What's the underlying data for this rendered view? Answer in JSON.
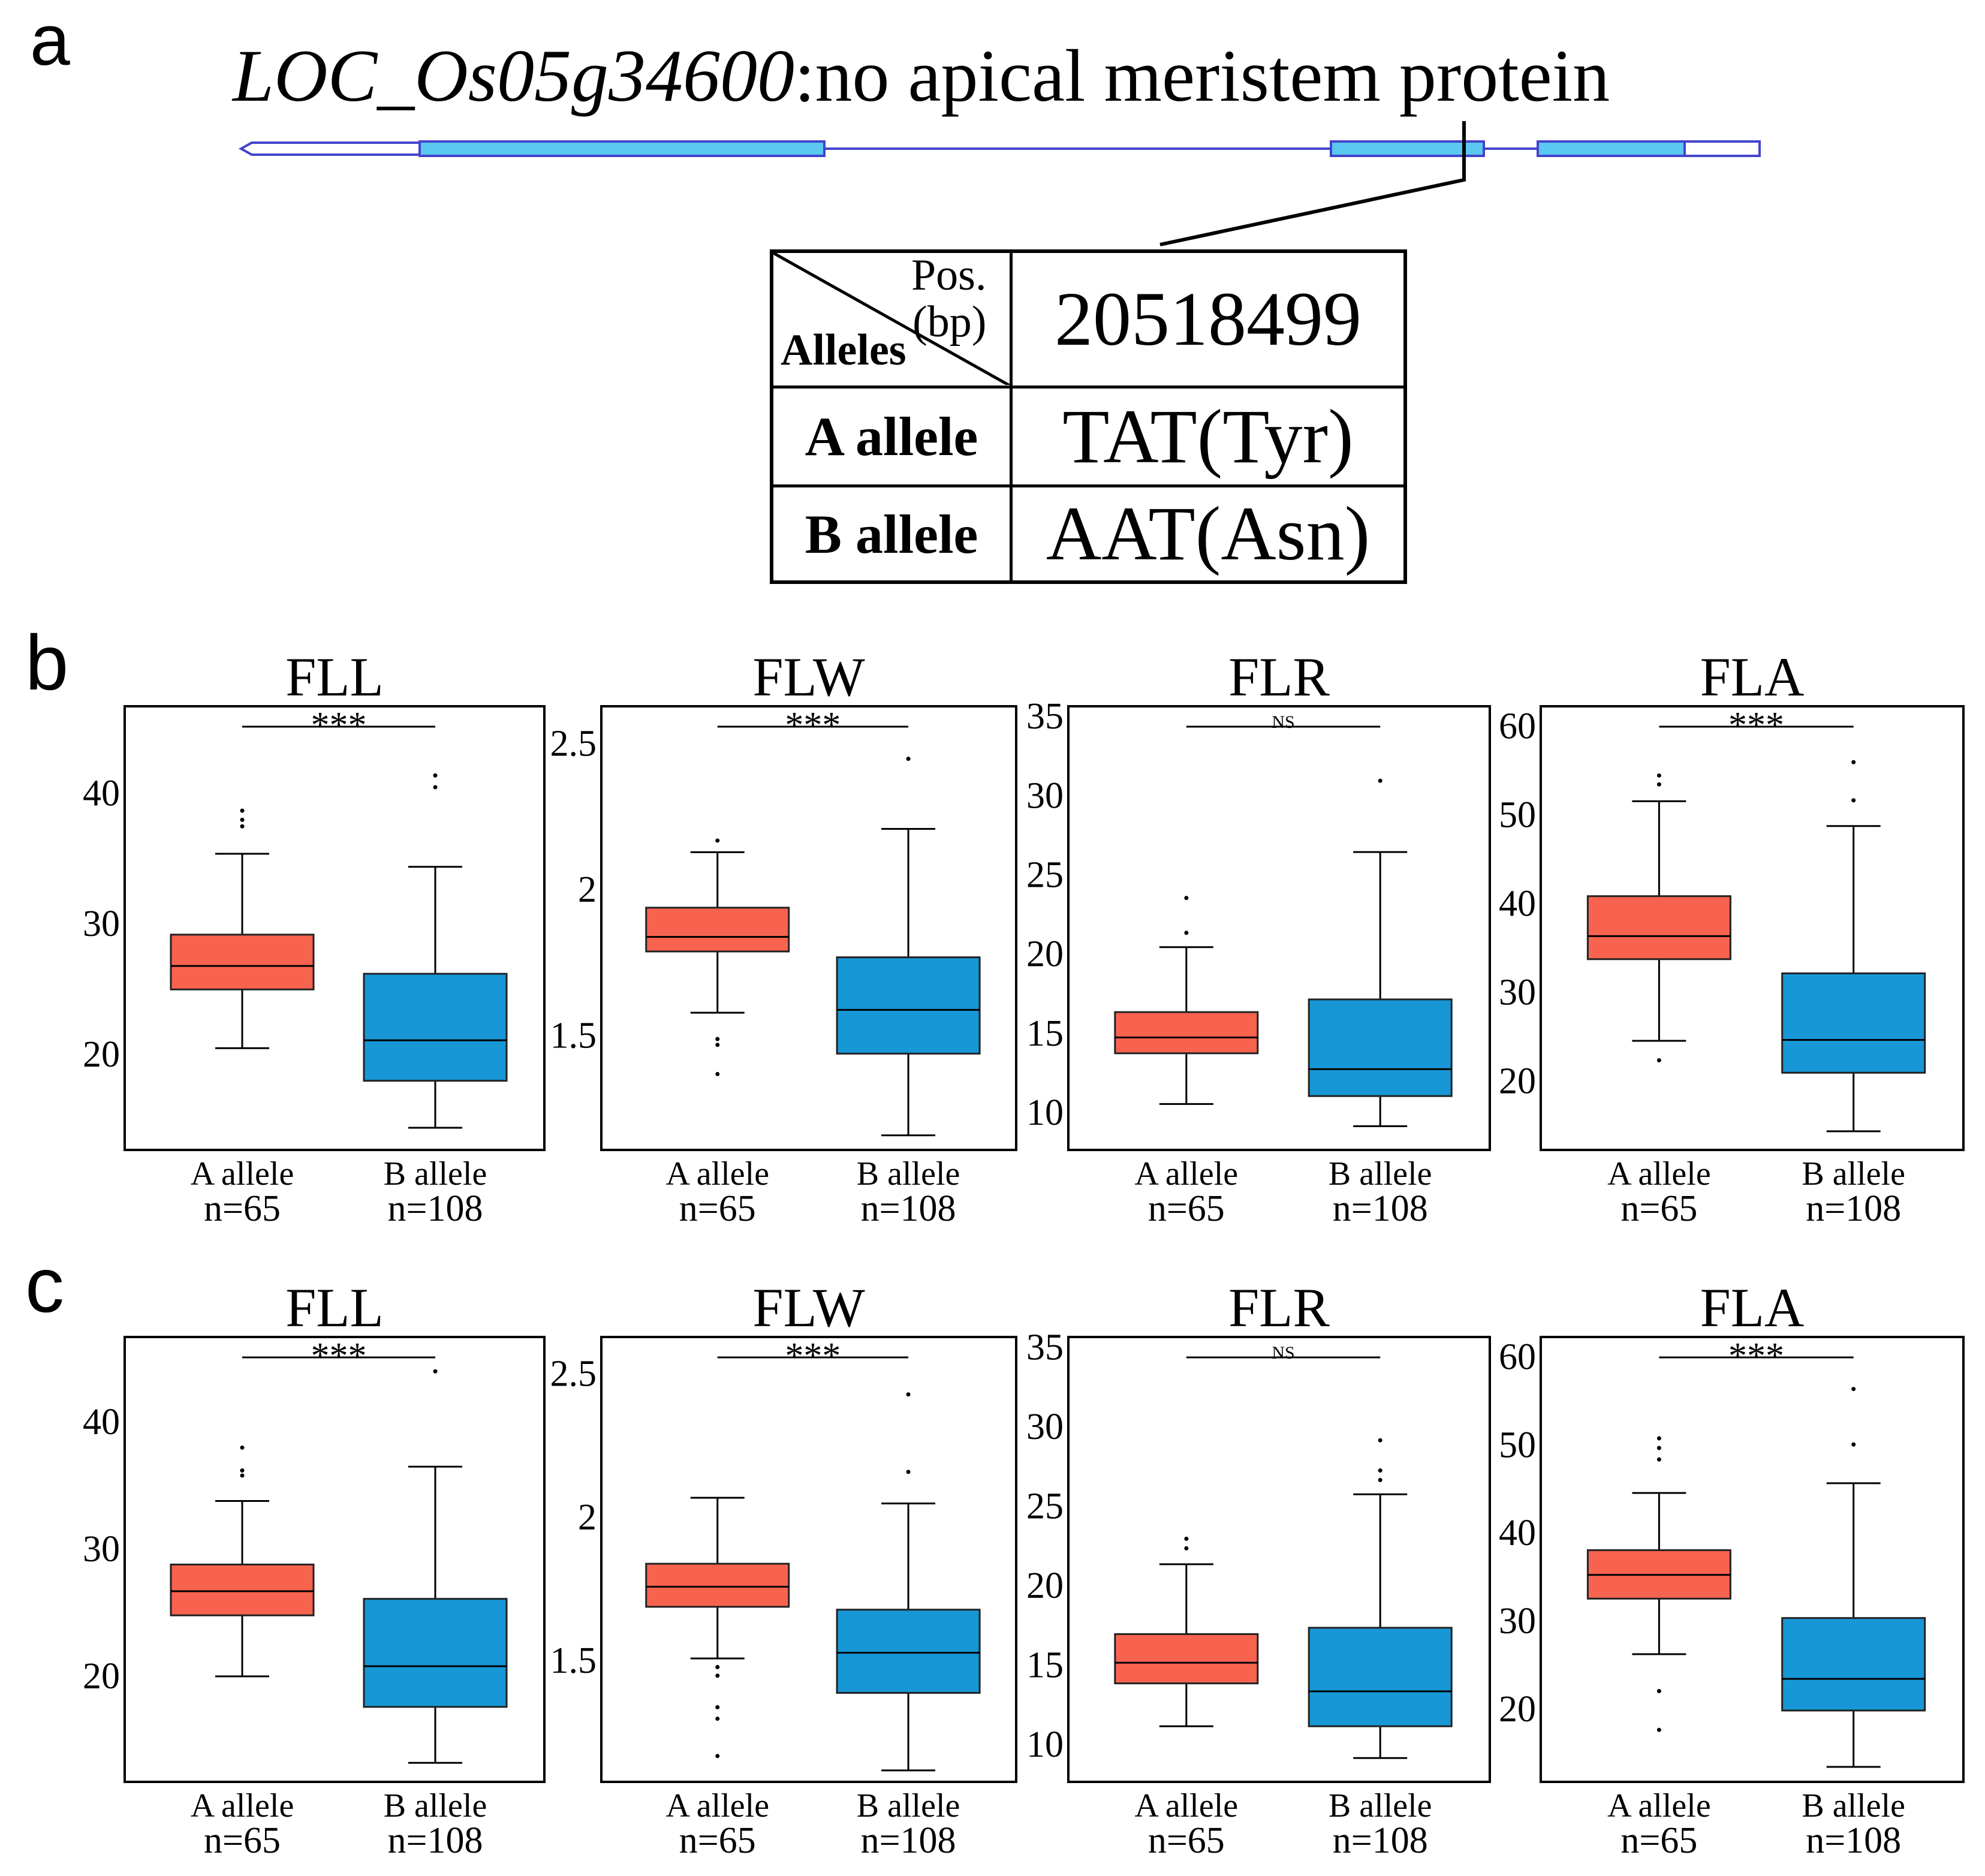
{
  "panel_labels": {
    "a": "a",
    "b": "b",
    "c": "c"
  },
  "gene": {
    "id": "LOC_Os05g34600",
    "description": ":no apical meristem protein"
  },
  "colors": {
    "a_allele": "#F8634F",
    "b_allele": "#1797D6",
    "exon": "#5AC8F0",
    "gene_line": "#4444CC"
  },
  "table": {
    "header_pos": "Pos.",
    "header_bp": "(bp)",
    "header_alleles": "Alleles",
    "position": "20518499",
    "rows": [
      {
        "allele": "A allele",
        "codon": "TAT(Tyr)"
      },
      {
        "allele": "B allele",
        "codon": "AAT(Asn)"
      }
    ]
  },
  "chart_data": [
    {
      "type": "box",
      "panel": "b",
      "title": "FLL",
      "significance": "***",
      "yticks": [
        20,
        30,
        40
      ],
      "ylim": [
        12.5,
        46.5
      ],
      "categories": [
        "A allele",
        "B allele"
      ],
      "n_labels": [
        "n=65",
        "n=108"
      ],
      "boxes": [
        {
          "name": "A allele",
          "whisker_low": 20.3,
          "q1": 24.8,
          "median": 26.6,
          "q3": 29.0,
          "whisker_high": 35.2,
          "outliers": [
            37.3,
            37.8,
            38.5
          ]
        },
        {
          "name": "B allele",
          "whisker_low": 14.2,
          "q1": 17.8,
          "median": 20.9,
          "q3": 26.0,
          "whisker_high": 34.2,
          "outliers": [
            40.3,
            41.2
          ]
        }
      ]
    },
    {
      "type": "box",
      "panel": "b",
      "title": "FLW",
      "significance": "***",
      "yticks": [
        1.5,
        2.0,
        2.5
      ],
      "ylim": [
        1.1,
        2.62
      ],
      "categories": [
        "A allele",
        "B allele"
      ],
      "n_labels": [
        "n=65",
        "n=108"
      ],
      "boxes": [
        {
          "name": "A allele",
          "whisker_low": 1.57,
          "q1": 1.78,
          "median": 1.83,
          "q3": 1.93,
          "whisker_high": 2.12,
          "outliers": [
            1.36,
            1.46,
            1.48,
            2.16
          ]
        },
        {
          "name": "B allele",
          "whisker_low": 1.15,
          "q1": 1.43,
          "median": 1.58,
          "q3": 1.76,
          "whisker_high": 2.2,
          "outliers": [
            2.44
          ]
        }
      ]
    },
    {
      "type": "box",
      "panel": "b",
      "title": "FLR",
      "significance": "NS",
      "yticks": [
        10,
        15,
        20,
        25,
        30,
        35
      ],
      "ylim": [
        7.5,
        35.5
      ],
      "categories": [
        "A allele",
        "B allele"
      ],
      "n_labels": [
        "n=65",
        "n=108"
      ],
      "boxes": [
        {
          "name": "A allele",
          "whisker_low": 10.4,
          "q1": 13.6,
          "median": 14.6,
          "q3": 16.2,
          "whisker_high": 20.3,
          "outliers": [
            21.2,
            23.4
          ]
        },
        {
          "name": "B allele",
          "whisker_low": 9.0,
          "q1": 10.9,
          "median": 12.6,
          "q3": 17.0,
          "whisker_high": 26.3,
          "outliers": [
            30.8
          ]
        }
      ]
    },
    {
      "type": "box",
      "panel": "b",
      "title": "FLA",
      "significance": "***",
      "yticks": [
        20,
        30,
        40,
        50,
        60
      ],
      "ylim": [
        12,
        62
      ],
      "categories": [
        "A allele",
        "B allele"
      ],
      "n_labels": [
        "n=65",
        "n=108"
      ],
      "boxes": [
        {
          "name": "A allele",
          "whisker_low": 24.3,
          "q1": 33.5,
          "median": 36.1,
          "q3": 40.6,
          "whisker_high": 51.3,
          "outliers": [
            22.1,
            53.2,
            54.2
          ]
        },
        {
          "name": "B allele",
          "whisker_low": 14.1,
          "q1": 20.7,
          "median": 24.4,
          "q3": 31.9,
          "whisker_high": 48.5,
          "outliers": [
            51.4,
            55.7
          ]
        }
      ]
    },
    {
      "type": "box",
      "panel": "c",
      "title": "FLL",
      "significance": "***",
      "yticks": [
        20,
        30,
        40
      ],
      "ylim": [
        11.5,
        46.5
      ],
      "categories": [
        "A allele",
        "B allele"
      ],
      "n_labels": [
        "n=65",
        "n=108"
      ],
      "boxes": [
        {
          "name": "A allele",
          "whisker_low": 19.8,
          "q1": 24.6,
          "median": 26.5,
          "q3": 28.6,
          "whisker_high": 33.6,
          "outliers": [
            35.6,
            36.0,
            37.8
          ]
        },
        {
          "name": "B allele",
          "whisker_low": 13.0,
          "q1": 17.4,
          "median": 20.6,
          "q3": 25.9,
          "whisker_high": 36.3,
          "outliers": [
            43.8
          ]
        }
      ]
    },
    {
      "type": "box",
      "panel": "c",
      "title": "FLW",
      "significance": "***",
      "yticks": [
        1.5,
        2.0,
        2.5
      ],
      "ylim": [
        1.07,
        2.62
      ],
      "categories": [
        "A allele",
        "B allele"
      ],
      "n_labels": [
        "n=65",
        "n=108"
      ],
      "boxes": [
        {
          "name": "A allele",
          "whisker_low": 1.5,
          "q1": 1.68,
          "median": 1.75,
          "q3": 1.83,
          "whisker_high": 2.06,
          "outliers": [
            1.16,
            1.29,
            1.33,
            1.44,
            1.47
          ]
        },
        {
          "name": "B allele",
          "whisker_low": 1.11,
          "q1": 1.38,
          "median": 1.52,
          "q3": 1.67,
          "whisker_high": 2.04,
          "outliers": [
            2.15,
            2.42
          ]
        }
      ]
    },
    {
      "type": "box",
      "panel": "c",
      "title": "FLR",
      "significance": "NS",
      "yticks": [
        10,
        15,
        20,
        25,
        30,
        35
      ],
      "ylim": [
        7.5,
        35.5
      ],
      "categories": [
        "A allele",
        "B allele"
      ],
      "n_labels": [
        "n=65",
        "n=108"
      ],
      "boxes": [
        {
          "name": "A allele",
          "whisker_low": 11.0,
          "q1": 13.7,
          "median": 15.0,
          "q3": 16.8,
          "whisker_high": 21.2,
          "outliers": [
            22.2,
            22.8
          ]
        },
        {
          "name": "B allele",
          "whisker_low": 9.0,
          "q1": 11.0,
          "median": 13.2,
          "q3": 17.2,
          "whisker_high": 25.6,
          "outliers": [
            26.5,
            27.1,
            29.0
          ]
        }
      ]
    },
    {
      "type": "box",
      "panel": "c",
      "title": "FLA",
      "significance": "***",
      "yticks": [
        20,
        30,
        40,
        50,
        60
      ],
      "ylim": [
        11.5,
        62
      ],
      "categories": [
        "A allele",
        "B allele"
      ],
      "n_labels": [
        "n=65",
        "n=108"
      ],
      "boxes": [
        {
          "name": "A allele",
          "whisker_low": 26.0,
          "q1": 32.3,
          "median": 35.0,
          "q3": 37.8,
          "whisker_high": 44.3,
          "outliers": [
            17.4,
            21.8,
            48.1,
            49.4,
            50.5
          ]
        },
        {
          "name": "B allele",
          "whisker_low": 13.2,
          "q1": 19.6,
          "median": 23.2,
          "q3": 30.1,
          "whisker_high": 45.4,
          "outliers": [
            49.8,
            56.1
          ]
        }
      ]
    }
  ]
}
